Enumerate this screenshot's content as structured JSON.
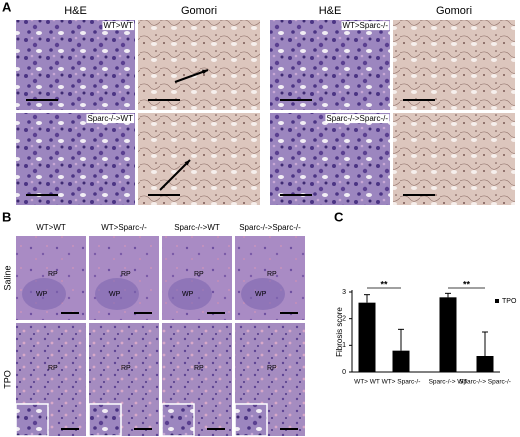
{
  "panel_a": {
    "label": "A",
    "headers": [
      "H&E",
      "Gomori",
      "H&E",
      "Gomori"
    ],
    "image_labels": [
      "WT>WT",
      "Sparc-/->WT",
      "WT>Sparc-/-",
      "Sparc-/->Sparc-/-"
    ]
  },
  "panel_b": {
    "label": "B",
    "columns": [
      "WT>WT",
      "WT>Sparc-/-",
      "Sparc-/->WT",
      "Sparc-/->Sparc-/-"
    ],
    "rows": [
      "Saline",
      "TPO"
    ],
    "regions": [
      "RP",
      "WP"
    ]
  },
  "chart_data": {
    "type": "bar",
    "panel_label": "C",
    "ylabel": "Fibrosis score",
    "categories": [
      "WT> WT",
      "WT> Sparc-/-",
      "Sparc-/-> WT",
      "Sparc-/-> Sparc-/-"
    ],
    "series": [
      {
        "name": "TPO",
        "color": "#000000",
        "values": [
          2.6,
          0.8,
          2.8,
          0.6
        ],
        "errors": [
          0.3,
          0.8,
          0.15,
          0.9
        ]
      }
    ],
    "ylim": [
      0,
      3
    ],
    "yticks": [
      0,
      1,
      2,
      3
    ],
    "annotations": [
      "**",
      "**"
    ],
    "legend": "right"
  }
}
